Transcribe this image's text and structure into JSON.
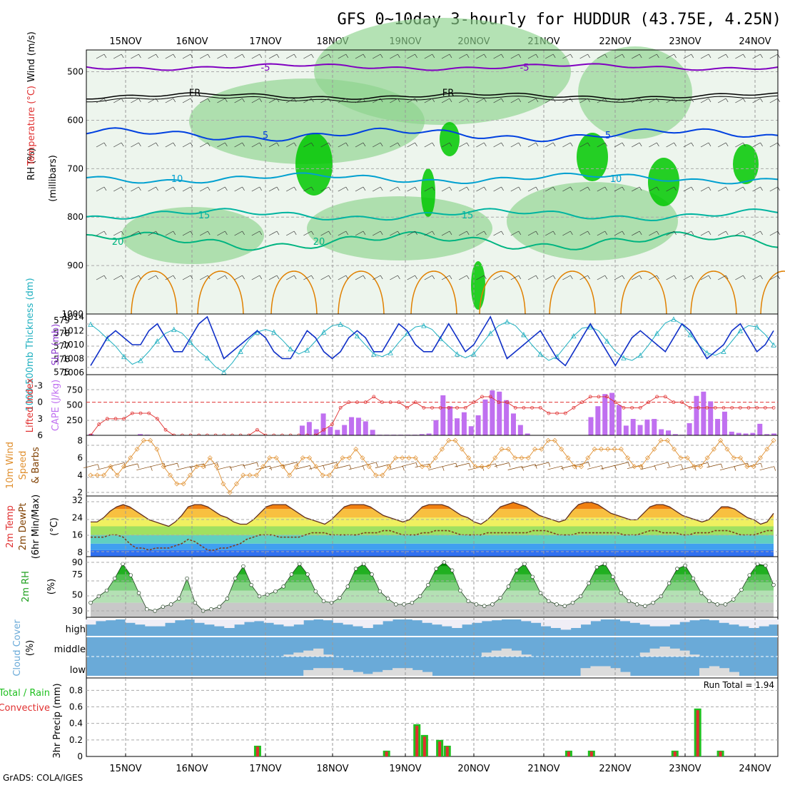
{
  "title": "GFS 0~10day 3-hourly for HUDDUR (43.75E, 4.25N)",
  "footer": "GrADS: COLA/IGES",
  "dates": [
    "15NOV",
    "16NOV",
    "17NOV",
    "18NOV",
    "19NOV",
    "20NOV",
    "21NOV",
    "22NOV",
    "23NOV",
    "24NOV"
  ],
  "colors": {
    "rh_dark": "#00c800",
    "rh_mid": "#8cd28c",
    "rh_light": "#dcecdc",
    "temp_purple": "#8000c0",
    "temp_blue": "#0040e0",
    "temp_cyan": "#00a0d0",
    "temp_teal": "#00b4a0",
    "temp_green": "#00b480",
    "temp_orange": "#e08000",
    "thickness": "#20b0c0",
    "slp": "#1030c8",
    "lifted": "#e03030",
    "cape": "#c070f0",
    "wind": "#e09030",
    "barb": "#804000",
    "precip_total": "#20c020",
    "precip_conv": "#e03030",
    "cloud": "#6aaad8",
    "cloud_gap": "#d8d8d8"
  },
  "panels": {
    "upper": {
      "y_label": "(millibars)",
      "legend_wind": "Wind (m/s)",
      "legend_temp": "Temperature (°C)",
      "legend_rh": "RH (%)",
      "ticks": [
        "500",
        "600",
        "700",
        "800",
        "900",
        "1000"
      ],
      "contours": [
        {
          "label": "-5",
          "color_key": "temp_purple"
        },
        {
          "label": "FR",
          "color_key": "freeze"
        },
        {
          "label": "5",
          "color_key": "temp_blue"
        },
        {
          "label": "10",
          "color_key": "temp_cyan"
        },
        {
          "label": "15",
          "color_key": "temp_teal"
        },
        {
          "label": "20",
          "color_key": "temp_green"
        }
      ]
    },
    "thickness": {
      "label_left": "1000-500mb Thickness (dm)",
      "label_right": "SLP (mb)",
      "left_ticks": [
        "579",
        "578",
        "577",
        "576",
        "575"
      ],
      "right_ticks": [
        "1014",
        "1012",
        "1010",
        "1008",
        "1006"
      ]
    },
    "lifted": {
      "label_left": "Lifted Index",
      "label_right": "CAPE (J/kg)",
      "left_ticks": [
        "-3",
        "0",
        "3",
        "6"
      ],
      "right_ticks": [
        "750",
        "500",
        "250"
      ]
    },
    "wind": {
      "label_a": "10m Wind",
      "label_b": "Speed",
      "label_c": "& Barbs",
      "ticks": [
        "8",
        "6",
        "4",
        "2"
      ]
    },
    "temp": {
      "label_a": "2m Temp",
      "label_b": "2m DewPt",
      "label_c": "(6hr Min/Max)",
      "unit": "(°C)",
      "ticks": [
        "32",
        "24",
        "16",
        "8"
      ]
    },
    "rh2m": {
      "label": "2m RH",
      "unit": "(%)",
      "ticks": [
        "90",
        "75",
        "50",
        "30"
      ]
    },
    "cloud": {
      "label": "Cloud Cover",
      "unit": "(%)",
      "levels": [
        "high",
        "middle",
        "low"
      ]
    },
    "precip": {
      "label_total": "Total",
      "label_rain": "Rain",
      "label_conv": "Convective",
      "y_label": "3hr Precip (mm)",
      "run_total": "Run Total = 1.94",
      "ticks": [
        "0.8",
        "0.6",
        "0.4",
        "0.2",
        "0"
      ]
    }
  },
  "chart_data": {
    "type": "meteogram",
    "title": "GFS 0~10day 3-hourly for HUDDUR (43.75E, 4.25N)",
    "x_dates": [
      "15NOV",
      "16NOV",
      "17NOV",
      "18NOV",
      "19NOV",
      "20NOV",
      "21NOV",
      "22NOV",
      "23NOV",
      "24NOV"
    ],
    "x_hours_first": -4,
    "x_hours_last": 78,
    "slp_mb": [
      1007,
      1009,
      1011,
      1012,
      1011,
      1010,
      1010,
      1012,
      1013,
      1011,
      1009,
      1009,
      1011,
      1013,
      1014,
      1011,
      1008,
      1009,
      1010,
      1011,
      1012,
      1011,
      1009,
      1008,
      1008,
      1010,
      1012,
      1011,
      1009,
      1008,
      1009,
      1011,
      1012,
      1011,
      1009,
      1009,
      1011,
      1013,
      1012,
      1010,
      1009,
      1009,
      1011,
      1013,
      1011,
      1009,
      1010,
      1012,
      1014,
      1011,
      1008,
      1009,
      1010,
      1011,
      1012,
      1010,
      1008,
      1007,
      1009,
      1011,
      1013,
      1011,
      1009,
      1007,
      1009,
      1011,
      1012,
      1011,
      1010,
      1009,
      1011,
      1013,
      1012,
      1010,
      1008,
      1009,
      1010,
      1012,
      1013,
      1011,
      1009,
      1010,
      1012
    ],
    "thickness_dm": [
      578.7,
      578.2,
      577.6,
      577.0,
      576.2,
      575.6,
      575.9,
      576.6,
      577.4,
      578.0,
      578.3,
      578.0,
      577.3,
      576.6,
      576.1,
      575.4,
      575.0,
      575.7,
      576.6,
      577.5,
      578.1,
      578.3,
      578.1,
      577.5,
      576.8,
      576.4,
      576.7,
      577.4,
      578.1,
      578.6,
      578.7,
      578.4,
      577.8,
      577.1,
      576.4,
      576.2,
      576.5,
      577.3,
      578.0,
      578.5,
      578.6,
      578.3,
      577.6,
      577.0,
      576.4,
      576.1,
      576.4,
      577.2,
      578.0,
      578.6,
      578.9,
      578.6,
      577.9,
      577.1,
      576.4,
      575.9,
      576.2,
      577.0,
      577.8,
      578.4,
      578.5,
      578.2,
      577.4,
      576.6,
      576.1,
      575.9,
      576.3,
      577.1,
      578.0,
      578.8,
      579.1,
      578.7,
      577.9,
      577.1,
      576.5,
      576.3,
      576.6,
      577.4,
      578.2,
      578.6,
      578.5,
      577.9,
      577.1
    ],
    "lifted_index": [
      6,
      4,
      3,
      3,
      3,
      2,
      2,
      2,
      3,
      5,
      6,
      6,
      6,
      6,
      6,
      6,
      6,
      6,
      6,
      6,
      5,
      6,
      6,
      6,
      6,
      6,
      6,
      6,
      5,
      4,
      1,
      0,
      0,
      0,
      -1,
      0,
      0,
      0,
      1,
      0,
      1,
      1,
      1,
      1,
      1,
      1,
      0,
      -1,
      -1,
      0,
      0,
      1,
      1,
      1,
      1,
      2,
      2,
      2,
      1,
      0,
      -1,
      -1,
      -1,
      0,
      1,
      1,
      1,
      0,
      -1,
      -1,
      0,
      0,
      1,
      1,
      1,
      1,
      1,
      1,
      1,
      1,
      1,
      1,
      1
    ],
    "cape_jkg": [
      20,
      0,
      0,
      0,
      0,
      0,
      0,
      20,
      10,
      0,
      0,
      0,
      0,
      0,
      0,
      0,
      0,
      0,
      0,
      0,
      0,
      0,
      0,
      0,
      0,
      0,
      0,
      0,
      0,
      0,
      160,
      220,
      100,
      360,
      140,
      90,
      170,
      300,
      290,
      230,
      90,
      10,
      10,
      10,
      10,
      10,
      10,
      20,
      30,
      250,
      660,
      480,
      280,
      380,
      150,
      330,
      590,
      740,
      720,
      580,
      360,
      170,
      30,
      0,
      0,
      0,
      0,
      0,
      0,
      0,
      0,
      300,
      480,
      680,
      700,
      500,
      160,
      270,
      170,
      260,
      270,
      100,
      80,
      20,
      10,
      200,
      650,
      720,
      560,
      270,
      390,
      60,
      40,
      30,
      40,
      190,
      20,
      30
    ],
    "wind_speed_ms": [
      4,
      4,
      4,
      5,
      4,
      5,
      6,
      7,
      8,
      8,
      7,
      5,
      4,
      3,
      3,
      4,
      5,
      5,
      6,
      5,
      3,
      2,
      3,
      4,
      4,
      4,
      5,
      6,
      6,
      5,
      4,
      5,
      6,
      6,
      5,
      4,
      4,
      5,
      6,
      6,
      7,
      6,
      5,
      4,
      4,
      5,
      6,
      6,
      6,
      6,
      5,
      5,
      6,
      7,
      8,
      8,
      7,
      6,
      5,
      5,
      5,
      6,
      7,
      7,
      6,
      6,
      6,
      7,
      7,
      8,
      8,
      7,
      6,
      5,
      5,
      6,
      7,
      7,
      7,
      7,
      7,
      6,
      5,
      5,
      6,
      7,
      8,
      8,
      7,
      6,
      6,
      5,
      5,
      6,
      7,
      8,
      7,
      6,
      6,
      5,
      5,
      6,
      7,
      8
    ],
    "temp_c": [
      22,
      22,
      24,
      27,
      29,
      30,
      29,
      27,
      25,
      23,
      22,
      21,
      20,
      22,
      25,
      29,
      30,
      30,
      29,
      27,
      25,
      24,
      22,
      21,
      21,
      23,
      26,
      29,
      30,
      30,
      30,
      28,
      26,
      24,
      23,
      22,
      21,
      23,
      26,
      29,
      30,
      30,
      30,
      29,
      27,
      25,
      24,
      23,
      22,
      23,
      26,
      29,
      30,
      30,
      30,
      29,
      27,
      25,
      24,
      22,
      21,
      23,
      26,
      29,
      30,
      31,
      30,
      29,
      27,
      25,
      24,
      23,
      22,
      23,
      27,
      30,
      31,
      31,
      30,
      28,
      26,
      25,
      24,
      23,
      23,
      26,
      29,
      30,
      30,
      29,
      27,
      25,
      24,
      23,
      22,
      23,
      26,
      29,
      29,
      28,
      26,
      24,
      23,
      21,
      22,
      26
    ],
    "dewpt_c": [
      15,
      15,
      15,
      16,
      16,
      15,
      12,
      10,
      10,
      9,
      10,
      10,
      10,
      11,
      12,
      14,
      13,
      11,
      9,
      9,
      10,
      10,
      11,
      12,
      14,
      15,
      16,
      16,
      16,
      15,
      15,
      15,
      15,
      16,
      17,
      17,
      17,
      16,
      16,
      16,
      16,
      16,
      17,
      17,
      17,
      18,
      18,
      17,
      16,
      16,
      16,
      17,
      17,
      18,
      18,
      18,
      17,
      16,
      16,
      16,
      16,
      17,
      17,
      17,
      17,
      17,
      17,
      17,
      18,
      18,
      18,
      17,
      16,
      16,
      16,
      17,
      17,
      17,
      17,
      17,
      17,
      17,
      16,
      16,
      16,
      17,
      18,
      18,
      17,
      17,
      17,
      16,
      16,
      17,
      17,
      17,
      18,
      18,
      18,
      17,
      16,
      16,
      16,
      17,
      18,
      18
    ],
    "rh2m_pct": [
      40,
      48,
      55,
      70,
      88,
      74,
      52,
      32,
      30,
      35,
      38,
      45,
      70,
      40,
      30,
      32,
      35,
      45,
      70,
      85,
      62,
      48,
      50,
      54,
      60,
      75,
      88,
      75,
      54,
      42,
      40,
      46,
      60,
      82,
      88,
      75,
      54,
      45,
      38,
      38,
      40,
      48,
      62,
      82,
      90,
      80,
      55,
      42,
      38,
      36,
      38,
      46,
      60,
      80,
      88,
      72,
      52,
      42,
      38,
      36,
      40,
      48,
      64,
      84,
      88,
      72,
      52,
      42,
      38,
      36,
      40,
      48,
      64,
      82,
      86,
      70,
      52,
      42,
      38,
      38,
      44,
      56,
      74,
      88,
      86,
      62
    ],
    "cloud_high_pct": [
      70,
      90,
      95,
      100,
      80,
      70,
      60,
      60,
      80,
      95,
      100,
      80,
      70,
      60,
      50,
      70,
      85,
      90,
      80,
      70,
      60,
      70,
      95,
      100,
      95,
      80,
      70,
      60,
      50,
      70,
      90,
      100,
      100,
      95,
      80,
      70,
      60,
      50,
      70,
      80,
      90,
      95,
      100,
      100,
      90,
      80,
      60,
      50,
      40,
      50,
      70,
      90,
      100,
      100,
      90,
      80,
      70,
      60,
      60,
      70,
      85,
      95,
      100,
      95,
      80,
      70,
      60,
      50,
      60,
      70
    ],
    "cloud_mid_pct": [
      0,
      0,
      0,
      0,
      0,
      0,
      0,
      0,
      0,
      0,
      0,
      0,
      0,
      0,
      0,
      0,
      0,
      0,
      0,
      0,
      10,
      20,
      30,
      40,
      10,
      0,
      0,
      0,
      0,
      0,
      0,
      0,
      0,
      0,
      0,
      0,
      0,
      0,
      0,
      0,
      20,
      30,
      40,
      30,
      10,
      0,
      0,
      0,
      0,
      0,
      0,
      0,
      0,
      0,
      0,
      0,
      20,
      40,
      50,
      40,
      30,
      10,
      0,
      0,
      0,
      0,
      0,
      0,
      0,
      0
    ],
    "cloud_low_pct": [
      0,
      0,
      0,
      0,
      0,
      0,
      0,
      0,
      0,
      0,
      0,
      0,
      0,
      0,
      0,
      0,
      0,
      0,
      0,
      0,
      0,
      0,
      30,
      40,
      40,
      40,
      30,
      20,
      10,
      20,
      30,
      40,
      40,
      30,
      20,
      0,
      0,
      0,
      0,
      0,
      0,
      0,
      0,
      0,
      0,
      0,
      0,
      0,
      0,
      0,
      40,
      50,
      50,
      40,
      20,
      0,
      0,
      0,
      0,
      0,
      0,
      0,
      40,
      50,
      40,
      20,
      0,
      0,
      0,
      0
    ],
    "precip_total_mm": [
      0,
      0,
      0,
      0,
      0,
      0,
      0,
      0,
      0,
      0,
      0,
      0,
      0,
      0,
      0,
      0,
      0,
      0,
      0,
      0,
      0,
      0,
      0.13,
      0,
      0,
      0,
      0,
      0,
      0,
      0,
      0,
      0,
      0,
      0,
      0,
      0,
      0,
      0,
      0,
      0.07,
      0,
      0,
      0,
      0.39,
      0.26,
      0,
      0.2,
      0.13,
      0,
      0,
      0,
      0,
      0,
      0,
      0,
      0,
      0,
      0,
      0,
      0,
      0,
      0,
      0,
      0.07,
      0,
      0,
      0.07,
      0,
      0,
      0,
      0,
      0,
      0,
      0,
      0,
      0,
      0,
      0.07,
      0,
      0,
      0.58,
      0,
      0,
      0.07,
      0,
      0,
      0,
      0,
      0,
      0,
      0
    ],
    "precip_conv_mm": [
      0,
      0,
      0,
      0,
      0,
      0,
      0,
      0,
      0,
      0,
      0,
      0,
      0,
      0,
      0,
      0,
      0,
      0,
      0,
      0,
      0,
      0,
      0.12,
      0,
      0,
      0,
      0,
      0,
      0,
      0,
      0,
      0,
      0,
      0,
      0,
      0,
      0,
      0,
      0,
      0.06,
      0,
      0,
      0,
      0.37,
      0.24,
      0,
      0.18,
      0.12,
      0,
      0,
      0,
      0,
      0,
      0,
      0,
      0,
      0,
      0,
      0,
      0,
      0,
      0,
      0,
      0.06,
      0,
      0,
      0.06,
      0,
      0,
      0,
      0,
      0,
      0,
      0,
      0,
      0,
      0,
      0.06,
      0,
      0,
      0.56,
      0,
      0,
      0.06,
      0,
      0,
      0,
      0,
      0,
      0,
      0
    ],
    "run_total_mm": 1.94,
    "grid": true
  }
}
